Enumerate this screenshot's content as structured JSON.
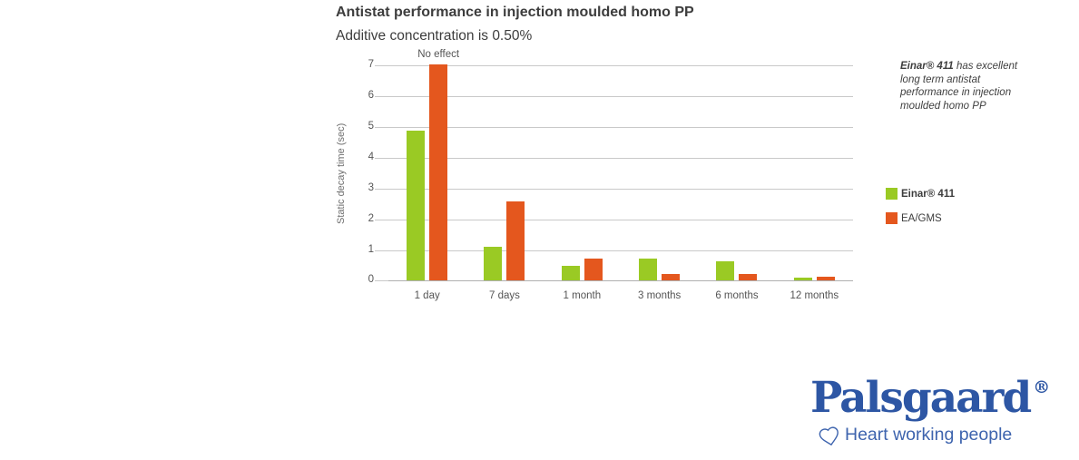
{
  "chart": {
    "title": "Antistat performance in injection moulded homo PP",
    "subtitle": "Additive concentration is 0.50%",
    "y_axis_label": "Static decay time (sec)",
    "annotation": "No effect"
  },
  "chart_data": {
    "type": "bar",
    "title": "Antistat performance in injection moulded homo PP",
    "subtitle": "Additive concentration is 0.50%",
    "categories": [
      "1 day",
      "7 days",
      "1 month",
      "3 months",
      "6 months",
      "12 months"
    ],
    "series": [
      {
        "name": "Einar® 411",
        "color": "#9aca24",
        "values": [
          4.85,
          1.1,
          0.47,
          0.7,
          0.63,
          0.1
        ]
      },
      {
        "name": "EA/GMS",
        "color": "#e4571e",
        "values": [
          7.0,
          2.55,
          0.7,
          0.2,
          0.2,
          0.13
        ]
      }
    ],
    "ylabel": "Static decay time (sec)",
    "xlabel": "",
    "ylim": [
      0,
      7
    ],
    "yticks": [
      0,
      1,
      2,
      3,
      4,
      5,
      6,
      7
    ],
    "grid": true,
    "legend_position": "right",
    "annotations": [
      {
        "text": "No effect",
        "category": "1 day",
        "series": "EA/GMS",
        "note": "EA/GMS bar at 1 day is clipped at top of axis (value ≥ 7)"
      }
    ]
  },
  "note": {
    "bold": "Einar® 411",
    "rest": " has excellent long term antistat performance in injection moulded homo PP"
  },
  "legend": {
    "items": [
      {
        "label": "Einar® 411",
        "color": "#9aca24",
        "bold": true
      },
      {
        "label": "EA/GMS",
        "color": "#e4571e",
        "bold": false
      }
    ]
  },
  "logo": {
    "brand": "Palsgaard",
    "registered": "®",
    "tagline": "Heart working people",
    "color": "#2d56a4"
  },
  "colors": {
    "einar_green": "#9aca24",
    "eagms_orange": "#e4571e",
    "palsgaard_blue": "#2d56a4",
    "tagline_blue": "#3e64ae",
    "gridline": "#c9c9c9",
    "baseline": "#b0b0b0"
  }
}
